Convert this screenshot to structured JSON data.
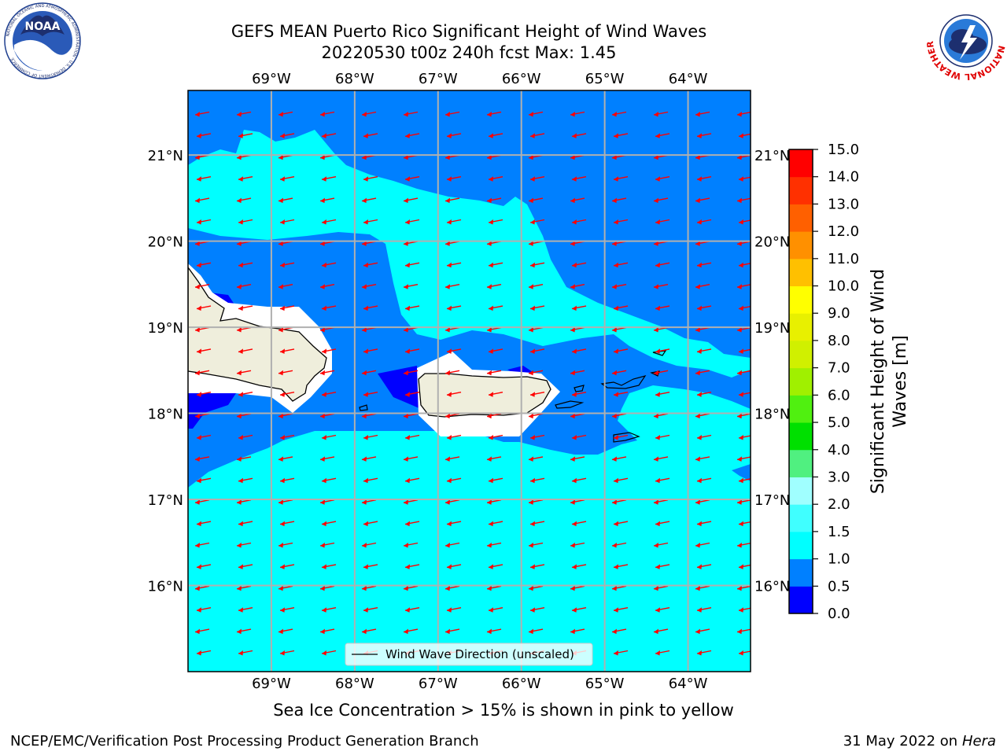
{
  "header": {
    "title_line1": "GEFS MEAN Puerto Rico Significant Height of Wind Waves",
    "title_line2": "20220530 t00z 240h fcst   Max: 1.45"
  },
  "logos": {
    "left": "NOAA",
    "left_ring_text": "NATIONAL OCEANIC AND ATMOSPHERIC ADMINISTRATION · U.S. DEPARTMENT OF COMMERCE",
    "right_ring_text": "NATIONAL WEATHER SERVICE"
  },
  "map": {
    "lon_range": [
      -70.0,
      -63.25
    ],
    "lat_range": [
      15.0,
      21.75
    ],
    "lon_ticks": [
      {
        "value": -69,
        "label": "69°W"
      },
      {
        "value": -68,
        "label": "68°W"
      },
      {
        "value": -67,
        "label": "67°W"
      },
      {
        "value": -66,
        "label": "66°W"
      },
      {
        "value": -65,
        "label": "65°W"
      },
      {
        "value": -64,
        "label": "64°W"
      }
    ],
    "lat_ticks": [
      {
        "value": 21,
        "label": "21°N"
      },
      {
        "value": 20,
        "label": "20°N"
      },
      {
        "value": 19,
        "label": "19°N"
      },
      {
        "value": 18,
        "label": "18°N"
      },
      {
        "value": 17,
        "label": "17°N"
      },
      {
        "value": 16,
        "label": "16°N"
      }
    ],
    "grid": true,
    "legend_label": "Wind Wave Direction (unscaled)",
    "legend_placement": "bottom-center",
    "arrow_color": "#ff0000",
    "land_color": "#efeedc",
    "colors": {
      "band_0_05": "#0000ff",
      "band_05_10": "#0080ff",
      "band_10_15": "#00ffff",
      "no_data_near_coast": "#ffffff"
    }
  },
  "colorbar": {
    "label": "Significant Height of Wind Waves [m]",
    "label_line1": "Significant Height of Wind",
    "label_line2": "Waves [m]",
    "placement": "right",
    "levels": [
      0.0,
      0.5,
      1.0,
      1.5,
      2.0,
      3.0,
      4.0,
      5.0,
      6.0,
      7.0,
      8.0,
      9.0,
      10.0,
      11.0,
      12.0,
      13.0,
      14.0,
      15.0
    ],
    "tick_labels": [
      "0.0",
      "0.5",
      "1.0",
      "1.5",
      "2.0",
      "3.0",
      "4.0",
      "5.0",
      "6.0",
      "7.0",
      "8.0",
      "9.0",
      "10.0",
      "11.0",
      "12.0",
      "13.0",
      "14.0",
      "15.0"
    ],
    "colors": [
      "#0000ff",
      "#0080ff",
      "#00ffff",
      "#40ffff",
      "#a0ffff",
      "#50f080",
      "#00e000",
      "#50f010",
      "#a0f000",
      "#d0f000",
      "#e8f000",
      "#ffff00",
      "#ffc000",
      "#ff9000",
      "#ff6000",
      "#ff3000",
      "#ff0000"
    ]
  },
  "footer": {
    "sea_ice_note": "Sea Ice Concentration > 15% is shown in pink to yellow",
    "left_text": "NCEP/EMC/Verification Post Processing Product Generation Branch",
    "right_text": "31 May 2022 on",
    "right_italic": "Hera"
  }
}
